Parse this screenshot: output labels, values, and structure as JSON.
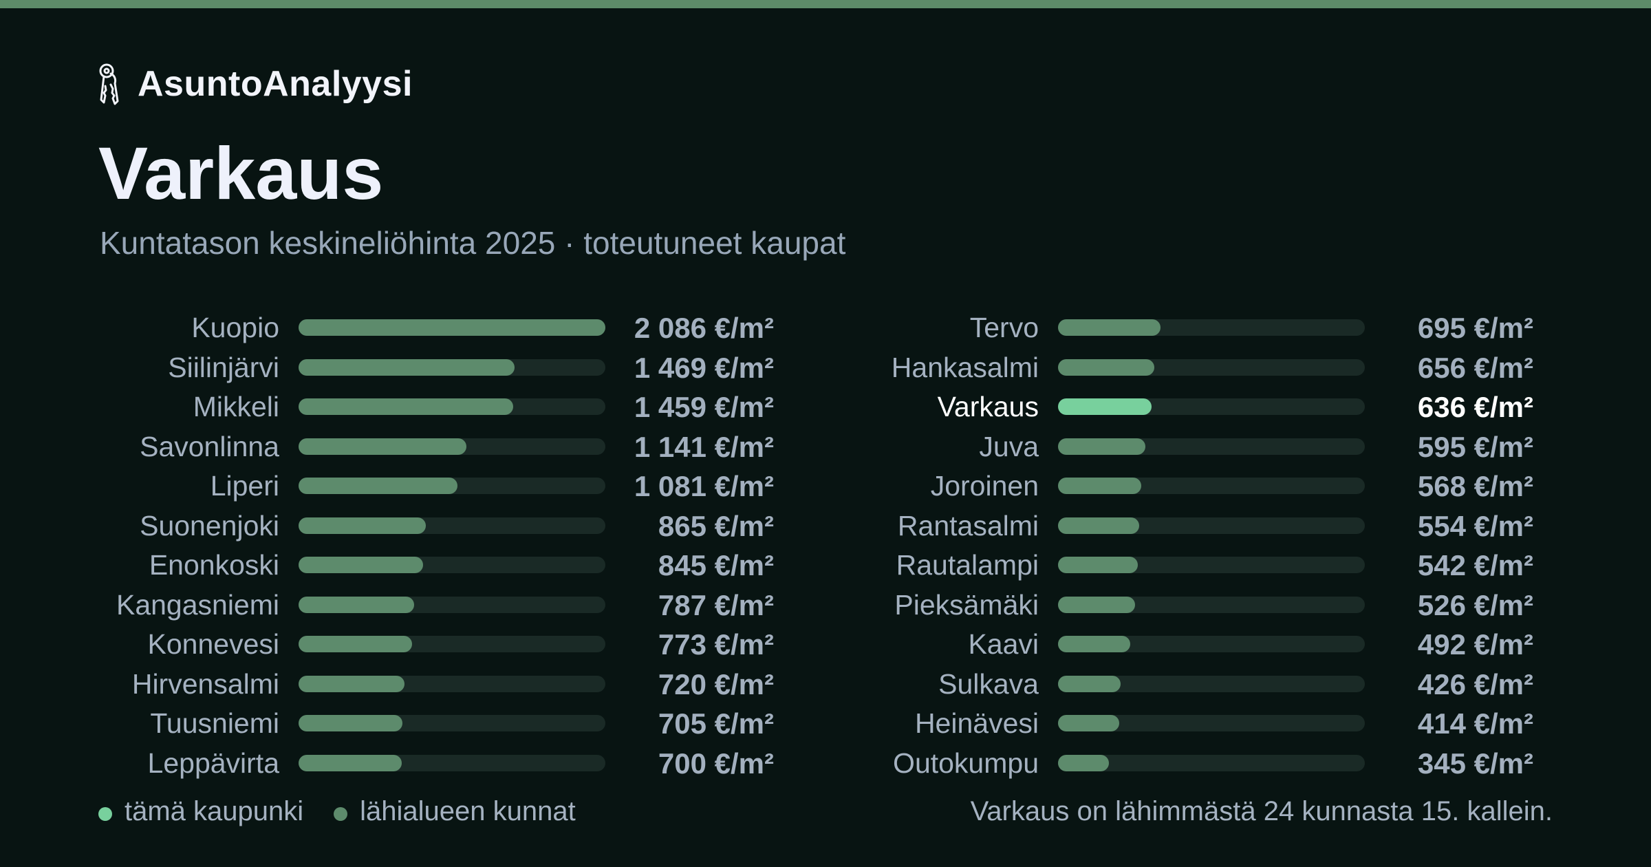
{
  "brand": {
    "name": "AsuntoAnalyysi",
    "icon": "keys-icon"
  },
  "title": "Varkaus",
  "subtitle": "Kuntatason keskineliöhinta 2025 · toteutuneet kaupat",
  "colors": {
    "background": "#081412",
    "bar": "#5d8b6c",
    "highlight": "#78d09d",
    "track": "#1a2a26",
    "accent_line": "#5d8b69"
  },
  "chart_data": {
    "type": "bar",
    "orientation": "horizontal",
    "unit": "€/m²",
    "max_value": 2086,
    "highlight": "Varkaus",
    "items": [
      {
        "name": "Kuopio",
        "value": 2086,
        "label": "2 086 €/m²"
      },
      {
        "name": "Siilinjärvi",
        "value": 1469,
        "label": "1 469 €/m²"
      },
      {
        "name": "Mikkeli",
        "value": 1459,
        "label": "1 459 €/m²"
      },
      {
        "name": "Savonlinna",
        "value": 1141,
        "label": "1 141 €/m²"
      },
      {
        "name": "Liperi",
        "value": 1081,
        "label": "1 081 €/m²"
      },
      {
        "name": "Suonenjoki",
        "value": 865,
        "label": "865 €/m²"
      },
      {
        "name": "Enonkoski",
        "value": 845,
        "label": "845 €/m²"
      },
      {
        "name": "Kangasniemi",
        "value": 787,
        "label": "787 €/m²"
      },
      {
        "name": "Konnevesi",
        "value": 773,
        "label": "773 €/m²"
      },
      {
        "name": "Hirvensalmi",
        "value": 720,
        "label": "720 €/m²"
      },
      {
        "name": "Tuusniemi",
        "value": 705,
        "label": "705 €/m²"
      },
      {
        "name": "Leppävirta",
        "value": 700,
        "label": "700 €/m²"
      },
      {
        "name": "Tervo",
        "value": 695,
        "label": "695 €/m²"
      },
      {
        "name": "Hankasalmi",
        "value": 656,
        "label": "656 €/m²"
      },
      {
        "name": "Varkaus",
        "value": 636,
        "label": "636 €/m²"
      },
      {
        "name": "Juva",
        "value": 595,
        "label": "595 €/m²"
      },
      {
        "name": "Joroinen",
        "value": 568,
        "label": "568 €/m²"
      },
      {
        "name": "Rantasalmi",
        "value": 554,
        "label": "554 €/m²"
      },
      {
        "name": "Rautalampi",
        "value": 542,
        "label": "542 €/m²"
      },
      {
        "name": "Pieksämäki",
        "value": 526,
        "label": "526 €/m²"
      },
      {
        "name": "Kaavi",
        "value": 492,
        "label": "492 €/m²"
      },
      {
        "name": "Sulkava",
        "value": 426,
        "label": "426 €/m²"
      },
      {
        "name": "Heinävesi",
        "value": 414,
        "label": "414 €/m²"
      },
      {
        "name": "Outokumpu",
        "value": 345,
        "label": "345 €/m²"
      }
    ]
  },
  "legend": {
    "items": [
      {
        "label": "tämä kaupunki",
        "color": "#78d09d"
      },
      {
        "label": "lähialueen kunnat",
        "color": "#5d8b6c"
      }
    ]
  },
  "footnote": "Varkaus on lähimmästä 24 kunnasta 15. kallein."
}
